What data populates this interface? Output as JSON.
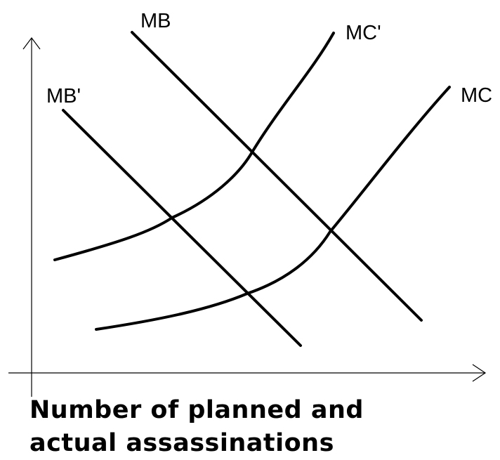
{
  "labels": {
    "mb": "MB",
    "mc_prime": "MC'",
    "mb_prime": "MB'",
    "mc": "MC"
  },
  "caption": {
    "line1": "Number of planned and",
    "line2": "actual assassinations"
  },
  "colors": {
    "line": "#000000",
    "background": "#ffffff"
  }
}
